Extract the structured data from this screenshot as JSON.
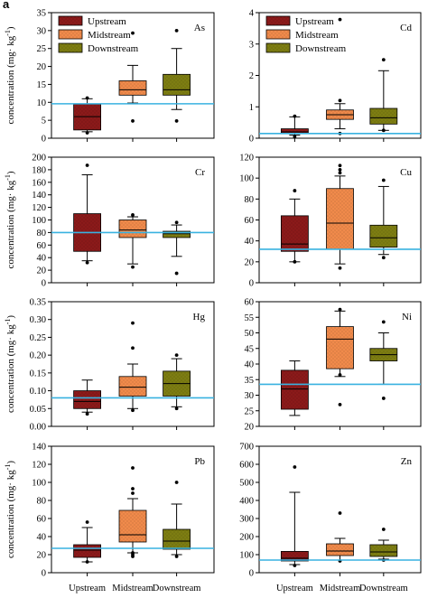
{
  "figure": {
    "panel_label": "a",
    "ylabel": "concentration (mg· kg-1)",
    "ylabel_main": "concentration (mg· kg",
    "ylabel_sup": "-1",
    "ylabel_close": ")",
    "legend": [
      "Upstream",
      "Midstream",
      "Downstream"
    ],
    "categories": [
      "Upstream",
      "Midstream",
      "Downstream"
    ],
    "colors": {
      "upstream": "#8b1a1a",
      "midstream": "#f08a4b",
      "downstream": "#7d7d12",
      "reference_line": "#39b2e0"
    }
  },
  "chart_data": [
    {
      "type": "box",
      "element": "As",
      "ylim": [
        0,
        35
      ],
      "yticks": [
        0,
        5,
        10,
        15,
        20,
        25,
        30,
        35
      ],
      "reference": 9.6,
      "legend": true,
      "boxes": [
        {
          "name": "Upstream",
          "min": 1.8,
          "q1": 2.3,
          "median": 6.0,
          "q3": 9.5,
          "max": 11,
          "outliers": [
            1.5,
            11.2
          ]
        },
        {
          "name": "Midstream",
          "min": 9.8,
          "q1": 12,
          "median": 13.5,
          "q3": 16,
          "max": 20.3,
          "outliers": [
            4.8,
            29.3
          ]
        },
        {
          "name": "Downstream",
          "min": 8,
          "q1": 12,
          "median": 13.5,
          "q3": 17.8,
          "max": 25,
          "outliers": [
            4.8,
            30
          ]
        }
      ]
    },
    {
      "type": "box",
      "element": "Cd",
      "ylim": [
        0,
        4
      ],
      "yticks": [
        0,
        1,
        2,
        3,
        4
      ],
      "reference": 0.15,
      "legend": true,
      "boxes": [
        {
          "name": "Upstream",
          "min": 0.1,
          "q1": 0.15,
          "median": 0.2,
          "q3": 0.3,
          "max": 0.68,
          "outliers": [
            0.05,
            0.7
          ]
        },
        {
          "name": "Midstream",
          "min": 0.3,
          "q1": 0.6,
          "median": 0.75,
          "q3": 0.9,
          "max": 1.1,
          "outliers": [
            0.15,
            1.2,
            3.78
          ]
        },
        {
          "name": "Downstream",
          "min": 0.25,
          "q1": 0.45,
          "median": 0.65,
          "q3": 0.95,
          "max": 2.15,
          "outliers": [
            0.25,
            2.5
          ]
        }
      ]
    },
    {
      "type": "box",
      "element": "Cr",
      "ylim": [
        0,
        200
      ],
      "yticks": [
        0,
        20,
        40,
        60,
        80,
        100,
        120,
        140,
        160,
        180,
        200
      ],
      "reference": 80,
      "legend": false,
      "boxes": [
        {
          "name": "Upstream",
          "min": 35,
          "q1": 50,
          "median": 80,
          "q3": 110,
          "max": 172,
          "outliers": [
            32,
            187
          ]
        },
        {
          "name": "Midstream",
          "min": 30,
          "q1": 72,
          "median": 84,
          "q3": 100,
          "max": 105,
          "outliers": [
            25,
            108
          ]
        },
        {
          "name": "Downstream",
          "min": 42,
          "q1": 72,
          "median": 78,
          "q3": 82,
          "max": 92,
          "outliers": [
            15,
            96
          ]
        }
      ]
    },
    {
      "type": "box",
      "element": "Cu",
      "ylim": [
        0,
        120
      ],
      "yticks": [
        0,
        20,
        40,
        60,
        80,
        100,
        120
      ],
      "reference": 32,
      "legend": false,
      "boxes": [
        {
          "name": "Upstream",
          "min": 20,
          "q1": 30,
          "median": 37,
          "q3": 64,
          "max": 80,
          "outliers": [
            20,
            88
          ]
        },
        {
          "name": "Midstream",
          "min": 18,
          "q1": 32,
          "median": 57,
          "q3": 90,
          "max": 102,
          "outliers": [
            14,
            105,
            108,
            112
          ]
        },
        {
          "name": "Downstream",
          "min": 27,
          "q1": 34,
          "median": 43,
          "q3": 55,
          "max": 92,
          "outliers": [
            24,
            98
          ]
        }
      ]
    },
    {
      "type": "box",
      "element": "Hg",
      "ylim": [
        0,
        0.35
      ],
      "yticks": [
        0,
        0.05,
        0.1,
        0.15,
        0.2,
        0.25,
        0.3,
        0.35
      ],
      "reference": 0.08,
      "legend": false,
      "boxes": [
        {
          "name": "Upstream",
          "min": 0.04,
          "q1": 0.05,
          "median": 0.07,
          "q3": 0.1,
          "max": 0.13,
          "outliers": [
            0.035
          ]
        },
        {
          "name": "Midstream",
          "min": 0.05,
          "q1": 0.085,
          "median": 0.11,
          "q3": 0.14,
          "max": 0.175,
          "outliers": [
            0.045,
            0.22,
            0.29
          ]
        },
        {
          "name": "Downstream",
          "min": 0.055,
          "q1": 0.085,
          "median": 0.12,
          "q3": 0.155,
          "max": 0.19,
          "outliers": [
            0.05,
            0.2
          ]
        }
      ]
    },
    {
      "type": "box",
      "element": "Ni",
      "ylim": [
        20,
        60
      ],
      "yticks": [
        20,
        25,
        30,
        35,
        40,
        45,
        50,
        55,
        60
      ],
      "reference": 33.5,
      "legend": false,
      "boxes": [
        {
          "name": "Upstream",
          "min": 23.5,
          "q1": 25.5,
          "median": 32,
          "q3": 38,
          "max": 41,
          "outliers": []
        },
        {
          "name": "Midstream",
          "min": 36,
          "q1": 38.5,
          "median": 48,
          "q3": 52,
          "max": 57,
          "outliers": [
            27,
            36.5,
            57.5
          ]
        },
        {
          "name": "Downstream",
          "min": 33.5,
          "q1": 41,
          "median": 43,
          "q3": 45,
          "max": 50,
          "outliers": [
            29,
            53.5
          ]
        }
      ]
    },
    {
      "type": "box",
      "element": "Pb",
      "ylim": [
        0,
        140
      ],
      "yticks": [
        0,
        20,
        40,
        60,
        80,
        100,
        120,
        140
      ],
      "reference": 27,
      "legend": false,
      "boxes": [
        {
          "name": "Upstream",
          "min": 12,
          "q1": 17,
          "median": 25,
          "q3": 31,
          "max": 50,
          "outliers": [
            12,
            56
          ]
        },
        {
          "name": "Midstream",
          "min": 22,
          "q1": 34,
          "median": 42,
          "q3": 69,
          "max": 82,
          "outliers": [
            18,
            20,
            22,
            88,
            93,
            116
          ]
        },
        {
          "name": "Downstream",
          "min": 20,
          "q1": 26,
          "median": 35,
          "q3": 48,
          "max": 76,
          "outliers": [
            18,
            100
          ]
        }
      ]
    },
    {
      "type": "box",
      "element": "Zn",
      "ylim": [
        0,
        700
      ],
      "yticks": [
        0,
        100,
        200,
        300,
        400,
        500,
        600,
        700
      ],
      "reference": 70,
      "legend": false,
      "boxes": [
        {
          "name": "Upstream",
          "min": 45,
          "q1": 65,
          "median": 80,
          "q3": 118,
          "max": 445,
          "outliers": [
            40,
            585
          ]
        },
        {
          "name": "Midstream",
          "min": 70,
          "q1": 95,
          "median": 120,
          "q3": 160,
          "max": 190,
          "outliers": [
            65,
            330
          ]
        },
        {
          "name": "Downstream",
          "min": 75,
          "q1": 90,
          "median": 115,
          "q3": 155,
          "max": 180,
          "outliers": [
            70,
            240
          ]
        }
      ]
    }
  ]
}
